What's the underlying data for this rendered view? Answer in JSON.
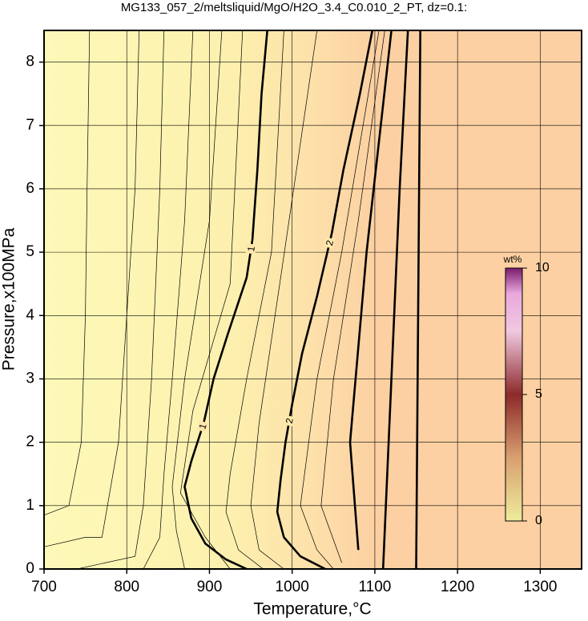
{
  "chart_data": {
    "type": "contour",
    "title": "MG133_057_2/meltsliquid/MgO/H2O_3.4_C0.010_2_PT, dz=0.1:",
    "x_label": "Temperature,°C",
    "y_label": "Pressure,x100MPa",
    "xlim": [
      700,
      1350
    ],
    "ylim": [
      0,
      8.5
    ],
    "xticks": [
      700,
      800,
      900,
      1000,
      1100,
      1200,
      1300
    ],
    "yticks": [
      0,
      1,
      2,
      3,
      4,
      5,
      6,
      7,
      8
    ],
    "grid": true,
    "contours": [
      {
        "level": 0.1,
        "x": [
          700,
          730,
          745,
          750,
          752,
          755
        ],
        "y": [
          0.85,
          1.0,
          2,
          4,
          6,
          8.5
        ]
      },
      {
        "level": 0.2,
        "x": [
          700,
          750,
          770,
          790,
          800,
          810,
          815
        ],
        "y": [
          0.35,
          0.5,
          0.5,
          2,
          4,
          6,
          8.5
        ]
      },
      {
        "level": 0.3,
        "x": [
          740,
          810,
          820,
          830,
          840,
          845
        ],
        "y": [
          0,
          0.2,
          1,
          3,
          6,
          8.5
        ]
      },
      {
        "level": 0.5,
        "x": [
          820,
          840,
          845,
          855,
          870,
          880
        ],
        "y": [
          0,
          0.5,
          1.5,
          3,
          5.5,
          8.5
        ]
      },
      {
        "level": 0.7,
        "x": [
          870,
          860,
          855,
          870,
          900,
          915
        ],
        "y": [
          0,
          0.6,
          1.3,
          3,
          5.5,
          8.5
        ]
      },
      {
        "level": 0.9,
        "x": [
          925,
          895,
          865,
          880,
          925,
          940
        ],
        "y": [
          0,
          0.5,
          1.2,
          2.5,
          4.5,
          8.5
        ]
      },
      {
        "level": 1,
        "name": "1",
        "x": [
          945,
          920,
          895,
          878,
          870,
          878,
          893,
          905,
          922,
          945,
          952,
          958,
          963,
          970
        ],
        "y": [
          0,
          0.15,
          0.4,
          0.8,
          1.3,
          1.7,
          2.3,
          3.0,
          3.7,
          4.6,
          5.2,
          6.3,
          7.5,
          8.5
        ]
      },
      {
        "level": 1.3,
        "x": [
          965,
          935,
          920,
          925,
          945,
          975,
          990
        ],
        "y": [
          0,
          0.3,
          0.9,
          1.5,
          3,
          5,
          8.5
        ]
      },
      {
        "level": 1.6,
        "x": [
          990,
          960,
          950,
          960,
          985,
          1030
        ],
        "y": [
          0,
          0.3,
          1,
          2.3,
          4.5,
          8.5
        ]
      },
      {
        "level": 2,
        "name": "2",
        "x": [
          1040,
          1010,
          990,
          982,
          986,
          992,
          1000,
          1012,
          1030,
          1048,
          1062,
          1082,
          1097
        ],
        "y": [
          0,
          0.2,
          0.5,
          0.9,
          1.4,
          2.0,
          2.6,
          3.4,
          4.3,
          5.3,
          6.3,
          7.5,
          8.5
        ]
      },
      {
        "level": 2.3,
        "x": [
          1050,
          1030,
          1010,
          1030,
          1060,
          1105
        ],
        "y": [
          0,
          0.3,
          1,
          3,
          5,
          8.5
        ]
      },
      {
        "level": 2.6,
        "x": [
          1060,
          1035,
          1050,
          1080,
          1112
        ],
        "y": [
          0.1,
          1,
          3,
          5.5,
          8.5
        ]
      },
      {
        "level": 3,
        "x": [
          1080,
          1070,
          1090,
          1120
        ],
        "y": [
          0.3,
          2,
          5,
          8.5
        ]
      },
      {
        "level": 4,
        "x": [
          1110,
          1120,
          1130,
          1140
        ],
        "y": [
          0,
          3,
          6,
          8.5
        ]
      },
      {
        "level": 5,
        "x": [
          1150,
          1155
        ],
        "y": [
          0,
          8.5
        ]
      }
    ],
    "colorbar": {
      "label": "wt%",
      "lim": [
        0,
        10
      ],
      "ticks": [
        0,
        5,
        10
      ]
    }
  }
}
